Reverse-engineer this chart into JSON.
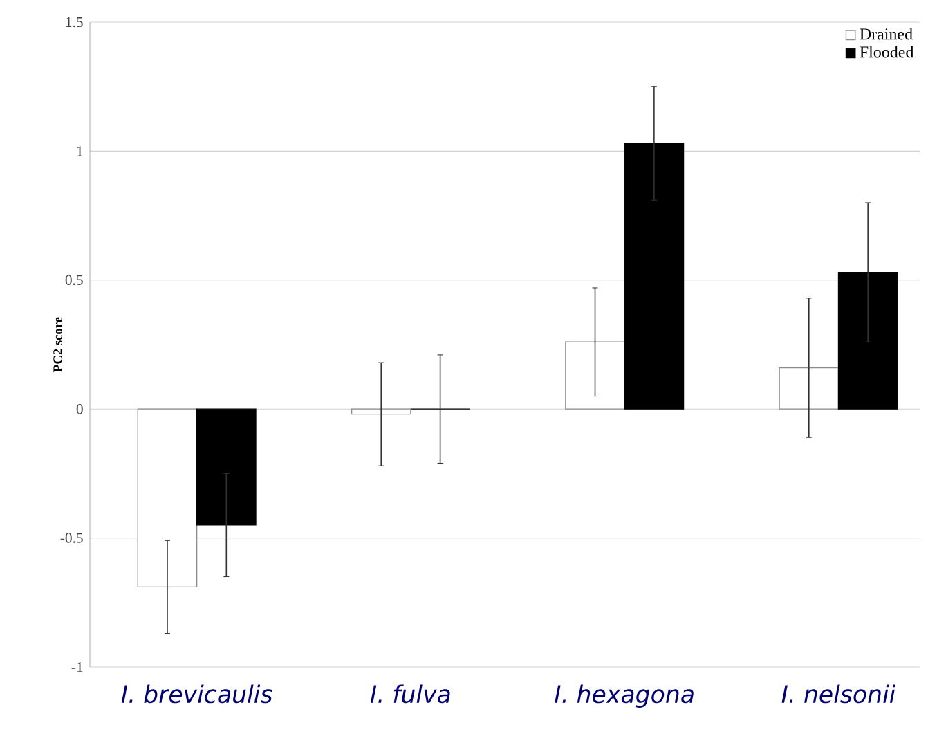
{
  "chart_data": {
    "type": "bar",
    "ylabel": "PC2 score",
    "categories": [
      "I. brevicaulis",
      "I. fulva",
      "I. hexagona",
      "I. nelsonii"
    ],
    "series": [
      {
        "name": "Drained",
        "color": "#ffffff",
        "values": [
          -0.69,
          -0.02,
          0.26,
          0.16
        ],
        "errors": [
          0.18,
          0.2,
          0.21,
          0.27
        ]
      },
      {
        "name": "Flooded",
        "color": "#000000",
        "values": [
          -0.45,
          0.0,
          1.03,
          0.53
        ],
        "errors": [
          0.2,
          0.21,
          0.22,
          0.27
        ]
      }
    ],
    "ylim": [
      -1,
      1.5
    ],
    "yticks": [
      -1,
      -0.5,
      0,
      0.5,
      1,
      1.5
    ],
    "grid": "y",
    "legend": "top right"
  }
}
